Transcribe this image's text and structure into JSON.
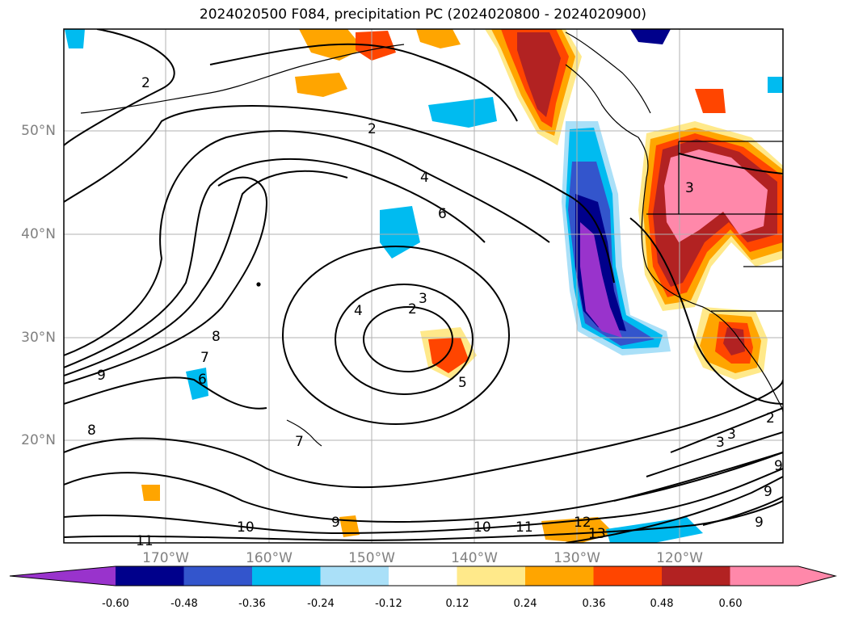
{
  "title": "2024020500 F084, precipitation PC (2024020800 - 2024020900)",
  "lat_labels": [
    "50°N",
    "40°N",
    "30°N",
    "20°N"
  ],
  "lon_labels": [
    "170°W",
    "160°W",
    "150°W",
    "140°W",
    "130°W",
    "120°W"
  ],
  "colorbar": {
    "ticks": [
      "-0.60",
      "-0.48",
      "-0.36",
      "-0.24",
      "-0.12",
      "0.12",
      "0.24",
      "0.36",
      "0.48",
      "0.60"
    ],
    "colors": [
      "#9933cc",
      "#00008b",
      "#3355cc",
      "#00bbf0",
      "#aae0f8",
      "#ffffff",
      "#ffe98a",
      "#ffa500",
      "#ff4500",
      "#b22222",
      "#ff88aa"
    ]
  },
  "contour_labels": [
    "2",
    "2",
    "4",
    "6",
    "3",
    "2",
    "4",
    "5",
    "8",
    "7",
    "6",
    "9",
    "8",
    "7",
    "10",
    "11",
    "9",
    "10",
    "11",
    "12",
    "13",
    "3",
    "3",
    "3",
    "2",
    "9",
    "9",
    "9"
  ]
}
